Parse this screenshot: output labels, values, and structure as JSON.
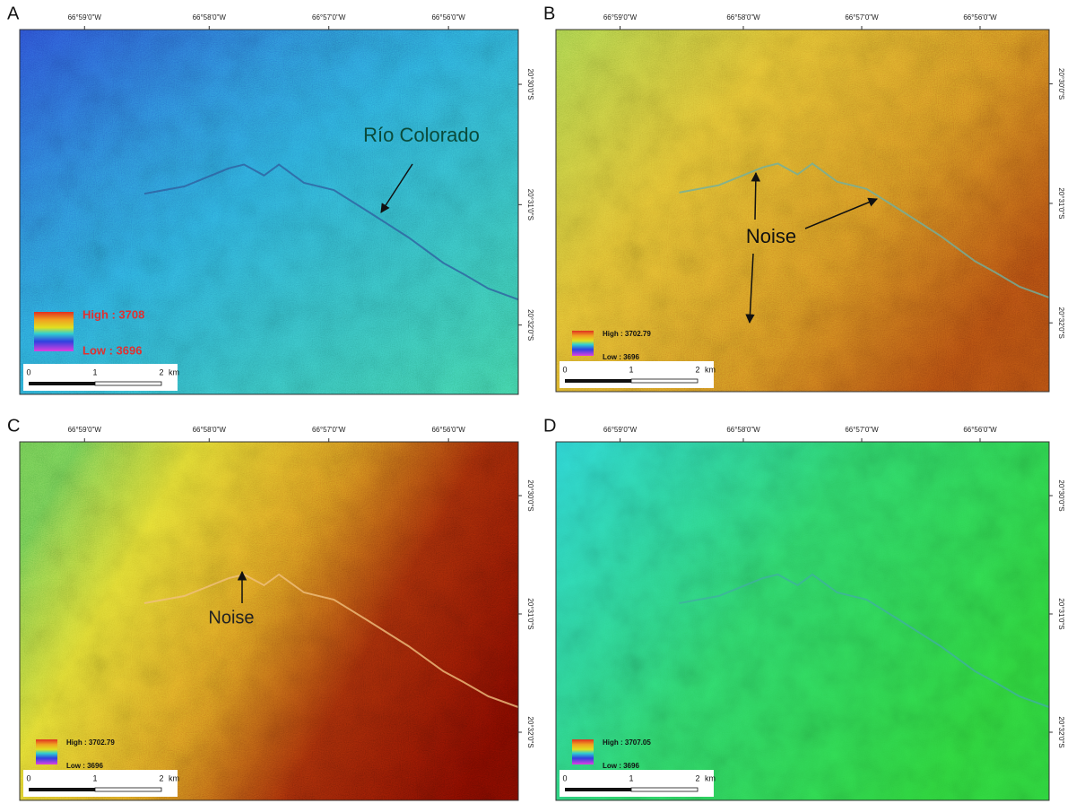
{
  "panels": [
    {
      "label": "A",
      "lon_labels": [
        "66°59'0\"W",
        "66°58'0\"W",
        "66°57'0\"W",
        "66°56'0\"W"
      ],
      "lat_labels": [
        "20°30'0\"S",
        "20°31'0\"S",
        "20°32'0\"S"
      ],
      "legend": {
        "high": "High : 3708",
        "low": "Low : 3696"
      },
      "scale_labels": [
        "0",
        "1",
        "2",
        "km"
      ],
      "annotation": "Río Colorado"
    },
    {
      "label": "B",
      "lon_labels": [
        "66°59'0\"W",
        "66°58'0\"W",
        "66°57'0\"W",
        "66°56'0\"W"
      ],
      "lat_labels": [
        "20°30'0\"S",
        "20°31'0\"S",
        "20°32'0\"S"
      ],
      "legend": {
        "high": "High : 3702.79",
        "low": "Low : 3696"
      },
      "scale_labels": [
        "0",
        "1",
        "2",
        "km"
      ],
      "annotation": "Noise"
    },
    {
      "label": "C",
      "lon_labels": [
        "66°59'0\"W",
        "66°58'0\"W",
        "66°57'0\"W",
        "66°56'0\"W"
      ],
      "lat_labels": [
        "20°30'0\"S",
        "20°31'0\"S",
        "20°32'0\"S"
      ],
      "legend": {
        "high": "High : 3702.79",
        "low": "Low : 3696"
      },
      "scale_labels": [
        "0",
        "1",
        "2",
        "km"
      ],
      "annotation": "Noise"
    },
    {
      "label": "D",
      "lon_labels": [
        "66°59'0\"W",
        "66°58'0\"W",
        "66°57'0\"W",
        "66°56'0\"W"
      ],
      "lat_labels": [
        "20°30'0\"S",
        "20°31'0\"S",
        "20°32'0\"S"
      ],
      "legend": {
        "high": "High : 3707.05",
        "low": "Low : 3696"
      },
      "scale_labels": [
        "0",
        "1",
        "2",
        "km"
      ]
    }
  ]
}
